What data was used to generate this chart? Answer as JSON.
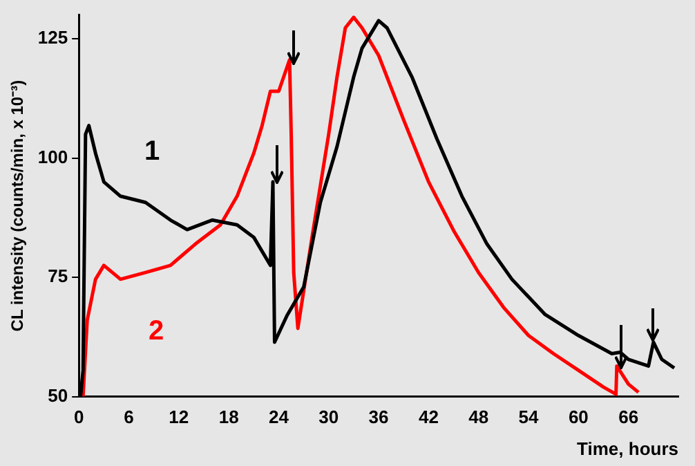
{
  "chart_data": {
    "type": "line",
    "xlabel": "Time, hours",
    "ylabel": "CL intensity (counts/min, x 10⁻³)",
    "xlim": [
      0,
      72
    ],
    "ylim": [
      50,
      130
    ],
    "xticks": [
      0,
      6,
      12,
      18,
      24,
      30,
      36,
      42,
      48,
      54,
      60,
      66
    ],
    "yticks": [
      50,
      75,
      100,
      125
    ],
    "grid": false,
    "legend": false,
    "marker": "none",
    "line_style": "solid",
    "series": [
      {
        "name": "1",
        "color": "#000000",
        "x": [
          0.2,
          0.5,
          0.8,
          1.2,
          2,
          3,
          5,
          8,
          11,
          13,
          16,
          19,
          21,
          23,
          23.3,
          23.5,
          25,
          27,
          29,
          31,
          33,
          34,
          36,
          37,
          40,
          43,
          46,
          49,
          52,
          56,
          60,
          64,
          65,
          66,
          68.4,
          69,
          70,
          71.5
        ],
        "values": [
          50,
          55.5,
          105,
          106.8,
          101,
          95,
          92,
          90.7,
          87,
          85,
          87,
          86,
          83.4,
          77.5,
          95,
          61.4,
          67,
          73,
          90.7,
          102.4,
          117,
          123,
          128.8,
          127.3,
          117,
          104,
          92,
          82,
          74.6,
          67.2,
          62.8,
          59,
          59.3,
          57.8,
          56.4,
          61.4,
          57.8,
          56
        ]
      },
      {
        "name": "2",
        "color": "#ff0000",
        "x": [
          0.5,
          1,
          2,
          3,
          5,
          8,
          11,
          14,
          17,
          19,
          21,
          22,
          23,
          24,
          25.3,
          25.5,
          25.8,
          26.3,
          28,
          30,
          31,
          32,
          33,
          34,
          36,
          39,
          42,
          45,
          48,
          51,
          54,
          57,
          60,
          63,
          64.5,
          64.6,
          66,
          67.2
        ],
        "values": [
          50,
          66,
          74.6,
          77.5,
          74.6,
          76,
          77.5,
          82,
          86,
          92,
          101,
          106.8,
          114,
          114,
          120.6,
          105,
          76,
          64.3,
          83.4,
          105,
          117,
          127.3,
          129.5,
          127.3,
          121.5,
          108,
          95,
          84.8,
          76,
          68.7,
          62.8,
          59,
          55.5,
          52,
          50.5,
          56.4,
          52.6,
          50.9
        ]
      }
    ]
  }
}
